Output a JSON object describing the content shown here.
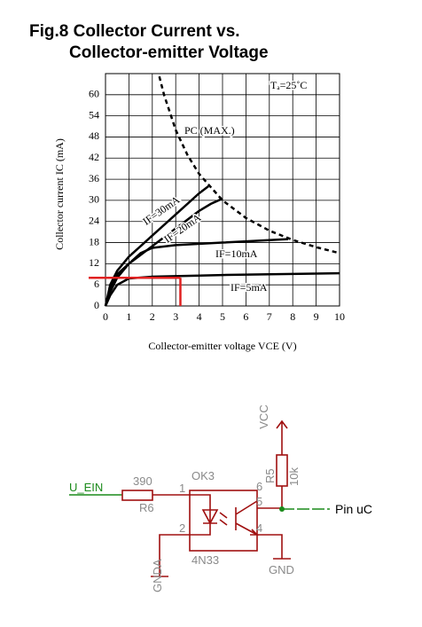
{
  "chart_data": {
    "type": "line",
    "title": "Fig.8 Collector Current vs. Collector-emitter Voltage",
    "x_label": "Collector-emitter voltage VCE (V)",
    "y_label": "Collector current IC (mA)",
    "xlim": [
      0,
      10
    ],
    "xticks": [
      0,
      1,
      2,
      3,
      4,
      5,
      6,
      7,
      8,
      9,
      10
    ],
    "ylim": [
      0,
      66
    ],
    "yticks": [
      0,
      6,
      12,
      18,
      24,
      30,
      36,
      42,
      48,
      54,
      60
    ],
    "grid": true,
    "annotations": [
      "Tₐ=25˚C",
      "PC (MAX.)",
      "IF=30mA",
      "IF=20mA",
      "IF=10mA",
      "IF=5mA"
    ],
    "series": [
      {
        "color": "#000000",
        "x": [
          0,
          0.2,
          0.5,
          1,
          1.5,
          2,
          3,
          4,
          4.4
        ],
        "values": [
          0,
          6,
          10,
          14,
          17,
          20,
          26,
          32,
          34
        ]
      },
      {
        "color": "#000000",
        "x": [
          0,
          0.2,
          0.5,
          1,
          1.5,
          2,
          3,
          4,
          4.5,
          5
        ],
        "values": [
          0,
          5,
          9,
          12,
          14.5,
          17,
          22,
          27,
          29,
          30.5
        ]
      },
      {
        "color": "#000000",
        "x": [
          0,
          0.2,
          0.5,
          1,
          1.5,
          2,
          3,
          5,
          7.8
        ],
        "values": [
          0,
          4,
          8,
          12,
          15,
          16.5,
          17.3,
          18,
          19
        ]
      },
      {
        "color": "#000000",
        "x": [
          0,
          0.2,
          0.5,
          1,
          2,
          5,
          10
        ],
        "values": [
          0,
          3,
          6,
          7.8,
          8.3,
          8.8,
          9.3
        ]
      },
      {
        "color": "#000000",
        "dashed": true,
        "x": [
          2.3,
          2.5,
          3,
          3.5,
          4,
          5,
          6,
          7,
          8,
          9,
          10
        ],
        "values": [
          65.2,
          60,
          50,
          42.9,
          37.5,
          30,
          25,
          21.4,
          18.75,
          16.7,
          15
        ]
      }
    ],
    "reference": {
      "color": "#e02020",
      "x": 3.2,
      "y": 8
    }
  },
  "schematic": {
    "vcc": "VCC",
    "r5_name": "R5",
    "r5_value": "10k",
    "input": "U_EIN",
    "r6_value": "390",
    "r6_name": "R6",
    "chip_name": "OK3",
    "chip_part": "4N33",
    "pins": [
      "1",
      "6",
      "5",
      "2",
      "4"
    ],
    "gnda": "GNDA",
    "gnd": "GND",
    "output": "Pin uC"
  }
}
